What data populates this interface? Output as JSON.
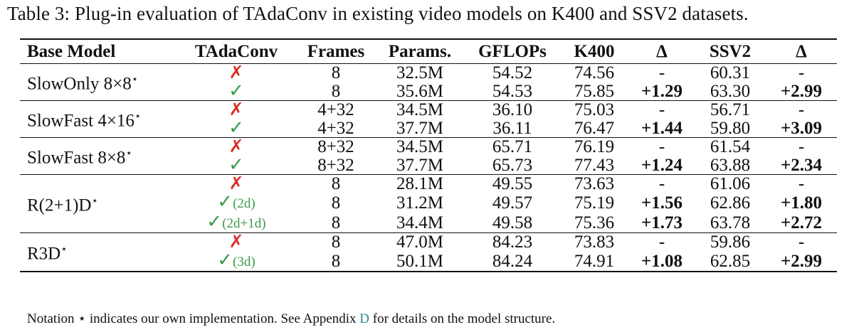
{
  "caption": "Table 3: Plug-in evaluation of TAdaConv in existing video models on K400 and SSV2 datasets.",
  "headers": [
    "Base Model",
    "TAdaConv",
    "Frames",
    "Params.",
    "GFLOPs",
    "K400",
    "Δ",
    "SSV2",
    "Δ"
  ],
  "groups": [
    {
      "model": "SlowOnly 8×8",
      "rows": [
        {
          "tada": "✗",
          "variant": "",
          "frames": "8",
          "params": "32.5M",
          "gflops": "54.52",
          "k400": "74.56",
          "dk": "-",
          "ssv2": "60.31",
          "ds": "-"
        },
        {
          "tada": "✓",
          "variant": "",
          "frames": "8",
          "params": "35.6M",
          "gflops": "54.53",
          "k400": "75.85",
          "dk": "+1.29",
          "ssv2": "63.30",
          "ds": "+2.99"
        }
      ]
    },
    {
      "model": "SlowFast 4×16",
      "rows": [
        {
          "tada": "✗",
          "variant": "",
          "frames": "4+32",
          "params": "34.5M",
          "gflops": "36.10",
          "k400": "75.03",
          "dk": "-",
          "ssv2": "56.71",
          "ds": "-"
        },
        {
          "tada": "✓",
          "variant": "",
          "frames": "4+32",
          "params": "37.7M",
          "gflops": "36.11",
          "k400": "76.47",
          "dk": "+1.44",
          "ssv2": "59.80",
          "ds": "+3.09"
        }
      ]
    },
    {
      "model": "SlowFast 8×8",
      "rows": [
        {
          "tada": "✗",
          "variant": "",
          "frames": "8+32",
          "params": "34.5M",
          "gflops": "65.71",
          "k400": "76.19",
          "dk": "-",
          "ssv2": "61.54",
          "ds": "-"
        },
        {
          "tada": "✓",
          "variant": "",
          "frames": "8+32",
          "params": "37.7M",
          "gflops": "65.73",
          "k400": "77.43",
          "dk": "+1.24",
          "ssv2": "63.88",
          "ds": "+2.34"
        }
      ]
    },
    {
      "model": "R(2+1)D",
      "rows": [
        {
          "tada": "✗",
          "variant": "",
          "frames": "8",
          "params": "28.1M",
          "gflops": "49.55",
          "k400": "73.63",
          "dk": "-",
          "ssv2": "61.06",
          "ds": "-"
        },
        {
          "tada": "✓",
          "variant": "(2d)",
          "frames": "8",
          "params": "31.2M",
          "gflops": "49.57",
          "k400": "75.19",
          "dk": "+1.56",
          "ssv2": "62.86",
          "ds": "+1.80"
        },
        {
          "tada": "✓",
          "variant": "(2d+1d)",
          "frames": "8",
          "params": "34.4M",
          "gflops": "49.58",
          "k400": "75.36",
          "dk": "+1.73",
          "ssv2": "63.78",
          "ds": "+2.72"
        }
      ]
    },
    {
      "model": "R3D",
      "rows": [
        {
          "tada": "✗",
          "variant": "",
          "frames": "8",
          "params": "47.0M",
          "gflops": "84.23",
          "k400": "73.83",
          "dk": "-",
          "ssv2": "59.86",
          "ds": "-"
        },
        {
          "tada": "✓",
          "variant": "(3d)",
          "frames": "8",
          "params": "50.1M",
          "gflops": "84.24",
          "k400": "74.91",
          "dk": "+1.08",
          "ssv2": "62.85",
          "ds": "+2.99"
        }
      ]
    }
  ],
  "model_marker": "⋆",
  "footnote": {
    "before": "Notation ⋆ indicates our own implementation. See Appendix ",
    "link": "D",
    "after": " for details on the model structure."
  },
  "colors": {
    "cross": "#d93025",
    "check": "#3a9a4a",
    "link": "#2b8a8a"
  }
}
